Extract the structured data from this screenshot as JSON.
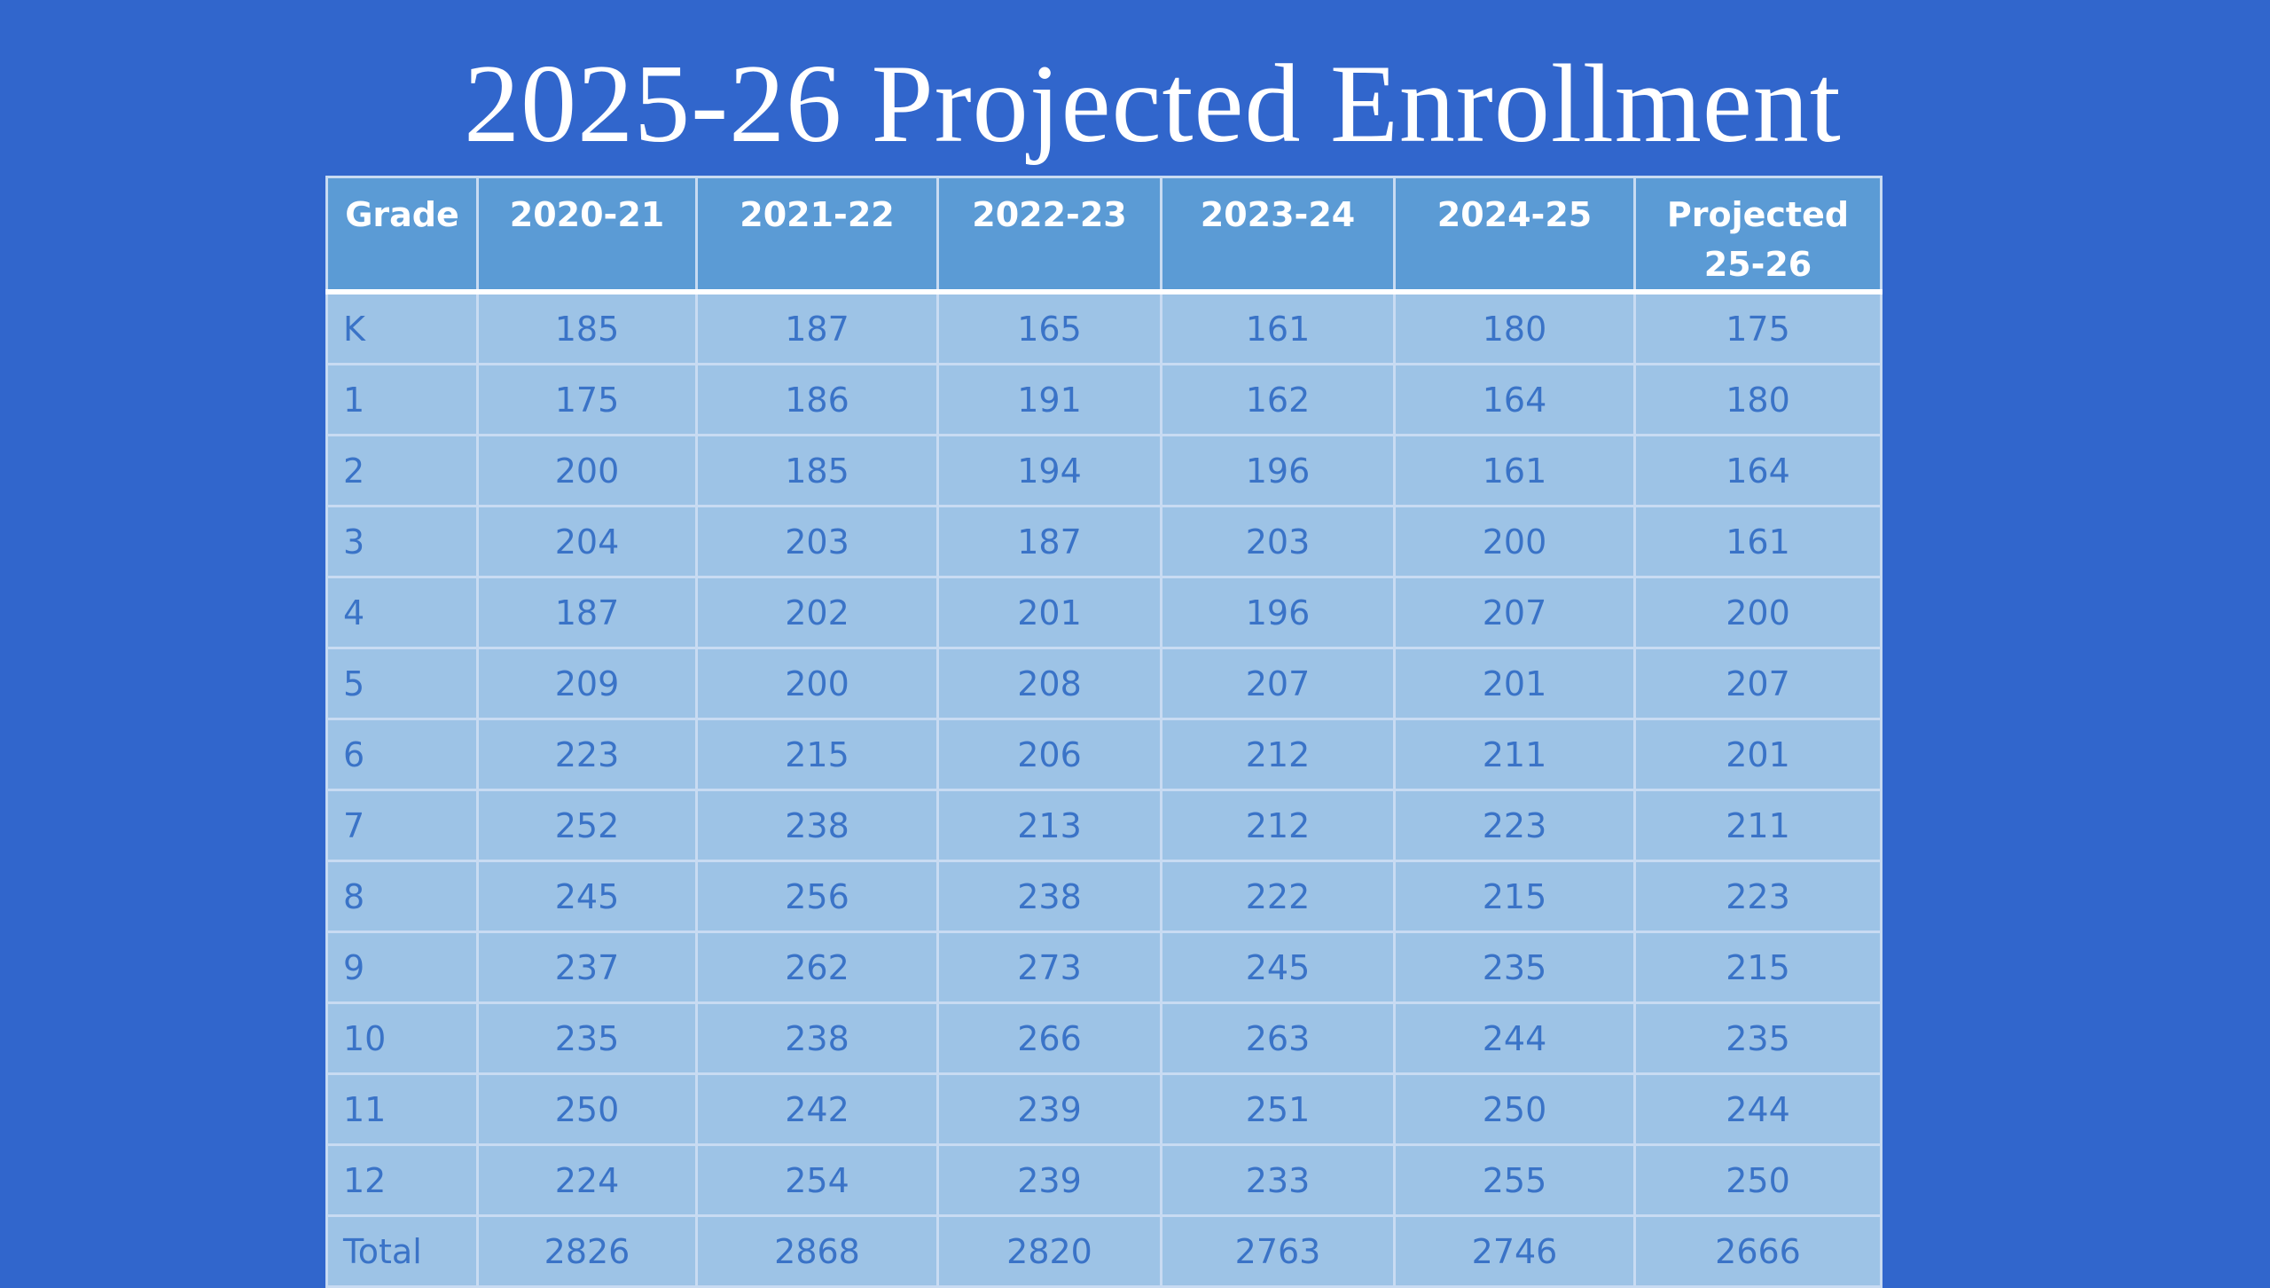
{
  "title": "2025-26 Projected Enrollment",
  "table": {
    "headers": [
      {
        "line1": "Grade",
        "line2": ""
      },
      {
        "line1": "2020-21",
        "line2": ""
      },
      {
        "line1": "2021-22",
        "line2": ""
      },
      {
        "line1": "2022-23",
        "line2": ""
      },
      {
        "line1": "2023-24",
        "line2": ""
      },
      {
        "line1": "2024-25",
        "line2": ""
      },
      {
        "line1": "Projected",
        "line2": "25-26"
      }
    ],
    "rows": [
      [
        "K",
        "185",
        "187",
        "165",
        "161",
        "180",
        "175"
      ],
      [
        "1",
        "175",
        "186",
        "191",
        "162",
        "164",
        "180"
      ],
      [
        "2",
        "200",
        "185",
        "194",
        "196",
        "161",
        "164"
      ],
      [
        "3",
        "204",
        "203",
        "187",
        "203",
        "200",
        "161"
      ],
      [
        "4",
        "187",
        "202",
        "201",
        "196",
        "207",
        "200"
      ],
      [
        "5",
        "209",
        "200",
        "208",
        "207",
        "201",
        "207"
      ],
      [
        "6",
        "223",
        "215",
        "206",
        "212",
        "211",
        "201"
      ],
      [
        "7",
        "252",
        "238",
        "213",
        "212",
        "223",
        "211"
      ],
      [
        "8",
        "245",
        "256",
        "238",
        "222",
        "215",
        "223"
      ],
      [
        "9",
        "237",
        "262",
        "273",
        "245",
        "235",
        "215"
      ],
      [
        "10",
        "235",
        "238",
        "266",
        "263",
        "244",
        "235"
      ],
      [
        "11",
        "250",
        "242",
        "239",
        "251",
        "250",
        "244"
      ],
      [
        "12",
        "224",
        "254",
        "239",
        "233",
        "255",
        "250"
      ],
      [
        "Total",
        "2826",
        "2868",
        "2820",
        "2763",
        "2746",
        "2666"
      ]
    ]
  },
  "colors": {
    "background": "#3166cc",
    "header_fill": "#5b9bd5",
    "body_fill": "#9dc3e6",
    "body_text": "#3a73c7",
    "grid_lines": "#c8dbf2",
    "title_text": "#ffffff"
  }
}
